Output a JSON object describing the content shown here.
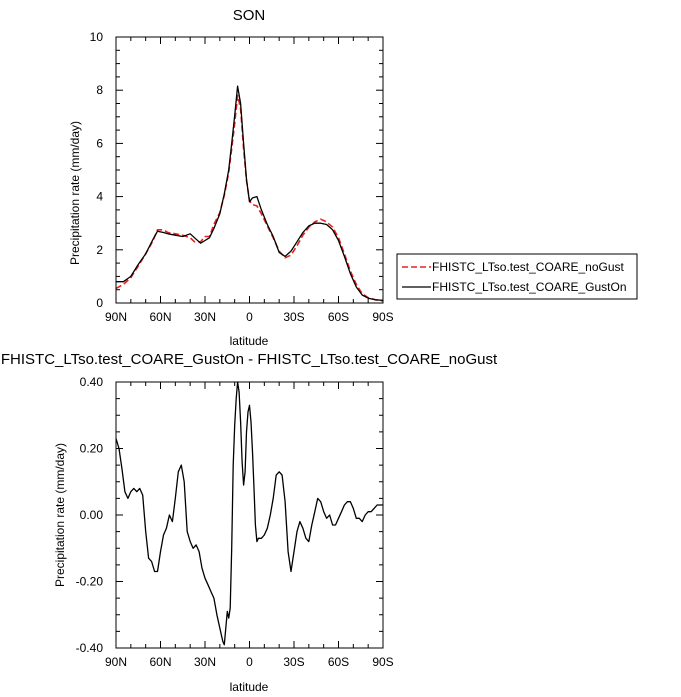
{
  "chart_data": [
    {
      "type": "line",
      "title": "SON",
      "xlabel": "latitude",
      "ylabel": "Precipitation rate (mm/day)",
      "xlim": [
        90,
        -90
      ],
      "ylim": [
        0,
        10
      ],
      "xticks": [
        90,
        60,
        30,
        0,
        -30,
        -60,
        -90
      ],
      "xtick_labels": [
        "90N",
        "60N",
        "30N",
        "0",
        "30S",
        "60S",
        "90S"
      ],
      "yticks": [
        0,
        2,
        4,
        6,
        8,
        10
      ],
      "ytick_labels": [
        "0",
        "2",
        "4",
        "6",
        "8",
        "10"
      ],
      "legend": "outside-right",
      "series": [
        {
          "name": "FHISTC_LTso.test_COARE_noGust",
          "color": "#e8201e",
          "style": "dashed",
          "x": [
            90,
            85,
            80,
            75,
            70,
            65,
            62,
            58,
            55,
            50,
            45,
            40,
            37,
            33,
            30,
            27,
            24,
            20,
            17,
            14,
            12,
            10,
            8,
            6,
            4,
            2,
            0,
            -2,
            -5,
            -8,
            -12,
            -16,
            -20,
            -24,
            -28,
            -32,
            -36,
            -40,
            -44,
            -48,
            -52,
            -56,
            -60,
            -64,
            -68,
            -72,
            -76,
            -80,
            -85,
            -90
          ],
          "y": [
            0.55,
            0.7,
            0.95,
            1.4,
            1.85,
            2.35,
            2.75,
            2.75,
            2.65,
            2.6,
            2.55,
            2.45,
            2.3,
            2.3,
            2.5,
            2.5,
            2.95,
            3.4,
            4.05,
            4.9,
            5.8,
            6.75,
            7.8,
            7.3,
            5.8,
            4.6,
            3.85,
            3.7,
            3.65,
            3.35,
            2.9,
            2.45,
            1.95,
            1.7,
            1.8,
            2.15,
            2.55,
            2.85,
            3.05,
            3.15,
            3.05,
            2.85,
            2.45,
            1.85,
            1.2,
            0.7,
            0.35,
            0.2,
            0.12,
            0.08
          ]
        },
        {
          "name": "FHISTC_LTso.test_COARE_GustOn",
          "color": "#000000",
          "style": "solid",
          "x": [
            90,
            85,
            80,
            75,
            70,
            65,
            62,
            58,
            55,
            50,
            45,
            40,
            37,
            33,
            30,
            27,
            24,
            20,
            17,
            14,
            12,
            10,
            8,
            6,
            4,
            2,
            0,
            -2,
            -5,
            -8,
            -12,
            -16,
            -20,
            -24,
            -28,
            -32,
            -36,
            -40,
            -44,
            -48,
            -52,
            -56,
            -60,
            -64,
            -68,
            -72,
            -76,
            -80,
            -85,
            -90
          ],
          "y": [
            0.8,
            0.8,
            1.0,
            1.45,
            1.85,
            2.4,
            2.7,
            2.65,
            2.6,
            2.55,
            2.5,
            2.6,
            2.45,
            2.25,
            2.35,
            2.45,
            2.8,
            3.35,
            4.1,
            5.0,
            6.0,
            7.05,
            8.15,
            7.5,
            6.0,
            4.65,
            3.8,
            3.95,
            4.0,
            3.5,
            2.95,
            2.5,
            1.9,
            1.75,
            1.95,
            2.3,
            2.65,
            2.9,
            3.0,
            3.0,
            2.95,
            2.75,
            2.35,
            1.75,
            1.1,
            0.6,
            0.3,
            0.18,
            0.12,
            0.1
          ]
        }
      ]
    },
    {
      "type": "line",
      "title": "FHISTC_LTso.test_COARE_GustOn - FHISTC_LTso.test_COARE_noGust",
      "xlabel": "latitude",
      "ylabel": "Precipitation rate (mm/day)",
      "xlim": [
        90,
        -90
      ],
      "ylim": [
        -0.4,
        0.4
      ],
      "xticks": [
        90,
        60,
        30,
        0,
        -30,
        -60,
        -90
      ],
      "xtick_labels": [
        "90N",
        "60N",
        "30N",
        "0",
        "30S",
        "60S",
        "90S"
      ],
      "yticks": [
        -0.4,
        -0.2,
        0,
        0.2,
        0.4
      ],
      "ytick_labels": [
        "-0.40",
        "-0.20",
        "0.00",
        "0.20",
        "0.40"
      ],
      "series": [
        {
          "color": "#000000",
          "style": "solid",
          "x": [
            90,
            88,
            86,
            84,
            82,
            80,
            78,
            76,
            74,
            72,
            70,
            68,
            66,
            64,
            62,
            60,
            58,
            56,
            54,
            52,
            50,
            48,
            46,
            44,
            42,
            40,
            38,
            36,
            34,
            32,
            30,
            28,
            26,
            24,
            22,
            20,
            18,
            17,
            16,
            15,
            14,
            13,
            12,
            11,
            10,
            9,
            8,
            7,
            6,
            5,
            4,
            3,
            2,
            1,
            0,
            -1,
            -2,
            -3,
            -4,
            -5,
            -6,
            -8,
            -10,
            -12,
            -14,
            -16,
            -18,
            -20,
            -22,
            -24,
            -26,
            -28,
            -30,
            -32,
            -34,
            -36,
            -38,
            -40,
            -42,
            -44,
            -46,
            -48,
            -50,
            -52,
            -54,
            -56,
            -58,
            -60,
            -62,
            -64,
            -66,
            -68,
            -70,
            -72,
            -74,
            -76,
            -78,
            -80,
            -82,
            -84,
            -86,
            -88,
            -90
          ],
          "y": [
            0.23,
            0.2,
            0.14,
            0.07,
            0.05,
            0.07,
            0.08,
            0.07,
            0.08,
            0.06,
            -0.05,
            -0.13,
            -0.14,
            -0.17,
            -0.17,
            -0.11,
            -0.06,
            -0.04,
            0.0,
            -0.02,
            0.05,
            0.13,
            0.15,
            0.1,
            -0.05,
            -0.08,
            -0.1,
            -0.09,
            -0.11,
            -0.16,
            -0.19,
            -0.21,
            -0.23,
            -0.25,
            -0.3,
            -0.34,
            -0.38,
            -0.39,
            -0.34,
            -0.29,
            -0.31,
            -0.28,
            -0.1,
            0.15,
            0.27,
            0.35,
            0.4,
            0.37,
            0.28,
            0.16,
            0.09,
            0.13,
            0.25,
            0.31,
            0.33,
            0.28,
            0.19,
            0.08,
            -0.03,
            -0.08,
            -0.07,
            -0.07,
            -0.06,
            -0.04,
            0.0,
            0.05,
            0.12,
            0.13,
            0.12,
            0.04,
            -0.11,
            -0.17,
            -0.11,
            -0.05,
            -0.02,
            -0.04,
            -0.07,
            -0.08,
            -0.03,
            0.01,
            0.05,
            0.04,
            0.01,
            -0.01,
            0.0,
            -0.03,
            -0.03,
            -0.01,
            0.01,
            0.03,
            0.04,
            0.04,
            0.02,
            -0.01,
            -0.01,
            -0.02,
            0.0,
            0.01,
            0.01,
            0.02,
            0.03,
            0.03,
            0.03
          ]
        }
      ]
    }
  ]
}
